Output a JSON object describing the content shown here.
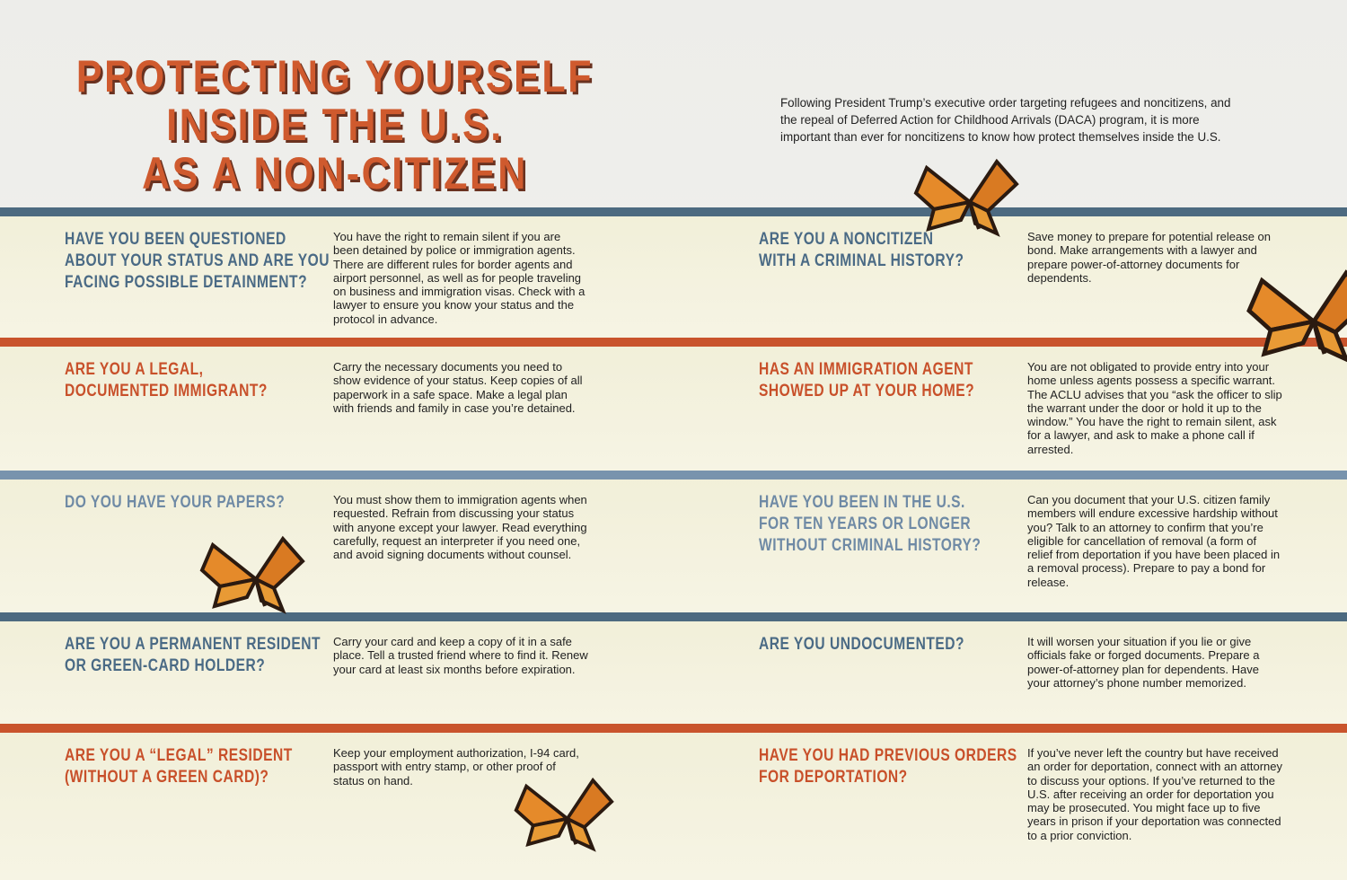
{
  "title": [
    "PROTECTING YOURSELF",
    "INSIDE THE U.S.",
    "AS A NON-CITIZEN"
  ],
  "intro": "Following President Trump’s executive order targeting refugees and noncitizens, and the repeal of Deferred Action for Childhood Arrivals (DACA) program, it is more important than ever for noncitizens to know how protect themselves inside the U.S.",
  "rows": [
    {
      "left": {
        "question": [
          "HAVE YOU BEEN QUESTIONED",
          "ABOUT YOUR STATUS AND ARE YOU",
          "FACING POSSIBLE DETAINMENT?"
        ],
        "answer": "You have the right to remain silent if you are been detained by police or immigration agents. There are different rules for border agents and airport personnel, as well as for people traveling on business and immigration visas. Check with a lawyer to ensure you know your status and the protocol in advance."
      },
      "right": {
        "question": [
          "ARE YOU A NONCITIZEN",
          "WITH A CRIMINAL HISTORY?"
        ],
        "answer": "Save money to prepare for potential release on bond. Make arrangements with a lawyer and prepare power-of-attorney documents for dependents."
      }
    },
    {
      "left": {
        "question": [
          "ARE YOU A LEGAL,",
          "DOCUMENTED IMMIGRANT?"
        ],
        "answer": "Carry the necessary documents you need to show evidence of your status. Keep copies of all paperwork in a safe space. Make a legal plan with friends and family in case you’re detained."
      },
      "right": {
        "question": [
          "HAS AN IMMIGRATION AGENT",
          "SHOWED UP AT YOUR HOME?"
        ],
        "answer": "You are not obligated to provide entry into your home unless agents possess a specific warrant. The ACLU advises that you “ask the officer to slip the warrant under the door or hold it up to the window.” You have the right to remain silent, ask for a lawyer, and ask to make a phone call if arrested."
      }
    },
    {
      "left": {
        "question": [
          "DO YOU HAVE YOUR PAPERS?"
        ],
        "answer": "You must show them to immigration agents when requested. Refrain from discussing your status with anyone except your lawyer. Read everything carefully, request an interpreter if you need one, and avoid signing documents without counsel."
      },
      "right": {
        "question": [
          "HAVE YOU BEEN IN THE U.S.",
          "FOR TEN YEARS OR LONGER",
          "WITHOUT CRIMINAL HISTORY?"
        ],
        "answer": "Can you document that your U.S. citizen family members will endure excessive hardship without you? Talk to an attorney to confirm that you’re eligible for cancellation of removal (a form of relief from deportation if you have been placed in a removal process). Prepare to pay a bond for release."
      }
    },
    {
      "left": {
        "question": [
          "ARE YOU A PERMANENT RESIDENT",
          "OR GREEN-CARD HOLDER?"
        ],
        "answer": "Carry your card and keep a copy of it in a safe place. Tell a trusted friend where to find it. Renew your card at least six months before expiration."
      },
      "right": {
        "question": [
          "ARE YOU UNDOCUMENTED?"
        ],
        "answer": "It will worsen your situation if you lie or give officials fake or forged documents. Prepare a power-of-attorney plan for dependents. Have your attorney’s phone number memorized."
      }
    },
    {
      "left": {
        "question": [
          "ARE YOU A “LEGAL” RESIDENT",
          "(WITHOUT A GREEN CARD)?"
        ],
        "answer": "Keep your employment authorization, I-94 card, passport with entry stamp, or other proof of status on hand."
      },
      "right": {
        "question": [
          "HAVE YOU HAD PREVIOUS ORDERS",
          "FOR DEPORTATION?"
        ],
        "answer": "If you’ve never left the country but have received an order for deportation, connect with an attorney to discuss your options. If you’ve returned to the U.S. after receiving an order for deportation you may be prosecuted. You might face up to five years in prison if your deportation was connected to a prior conviction."
      }
    }
  ]
}
